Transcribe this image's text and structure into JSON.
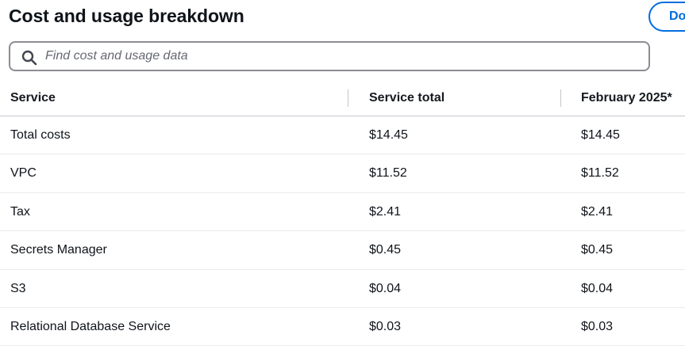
{
  "header": {
    "title": "Cost and usage breakdown",
    "download_label": "Download table"
  },
  "search": {
    "icon": "search-icon",
    "placeholder": "Find cost and usage data",
    "value": ""
  },
  "table": {
    "columns": [
      "Service",
      "Service total",
      "February 2025*"
    ],
    "rows": [
      {
        "service": "Total costs",
        "total": "$14.45",
        "month": "$14.45"
      },
      {
        "service": "VPC",
        "total": "$11.52",
        "month": "$11.52"
      },
      {
        "service": "Tax",
        "total": "$2.41",
        "month": "$2.41"
      },
      {
        "service": "Secrets Manager",
        "total": "$0.45",
        "month": "$0.45"
      },
      {
        "service": "S3",
        "total": "$0.04",
        "month": "$0.04"
      },
      {
        "service": "Relational Database Service",
        "total": "$0.03",
        "month": "$0.03"
      }
    ]
  },
  "colors": {
    "accent": "#006ce0",
    "text": "#16191f",
    "border": "#8c8c94"
  }
}
